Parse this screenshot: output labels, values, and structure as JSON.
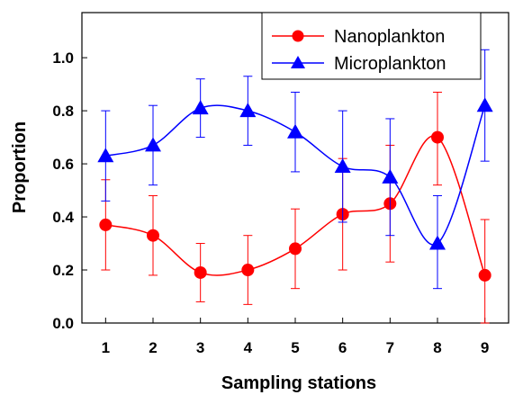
{
  "chart_data": {
    "type": "line",
    "title": "",
    "xlabel": "Sampling stations",
    "ylabel": "Proportion",
    "x": [
      1,
      2,
      3,
      4,
      5,
      6,
      7,
      8,
      9
    ],
    "x_ticks": [
      "1",
      "2",
      "3",
      "4",
      "5",
      "6",
      "7",
      "8",
      "9"
    ],
    "xlim": [
      0.5,
      9.5
    ],
    "ylim": [
      0,
      1.17
    ],
    "y_ticks": [
      "0.0",
      "0.2",
      "0.4",
      "0.6",
      "0.8",
      "1.0"
    ],
    "y_tick_values": [
      0,
      0.2,
      0.4,
      0.6,
      0.8,
      1.0
    ],
    "grid": false,
    "legend_position": "top-right",
    "series": [
      {
        "name": "Nanoplankton",
        "color": "#ff0000",
        "marker": "circle",
        "values": [
          0.37,
          0.33,
          0.19,
          0.2,
          0.28,
          0.41,
          0.45,
          0.7,
          0.18
        ],
        "err_upper": [
          0.54,
          0.48,
          0.3,
          0.33,
          0.43,
          0.62,
          0.67,
          0.87,
          0.39
        ],
        "err_lower": [
          0.2,
          0.18,
          0.08,
          0.07,
          0.13,
          0.2,
          0.23,
          0.52,
          0.0
        ]
      },
      {
        "name": "Microplankton",
        "color": "#0000ff",
        "marker": "triangle",
        "values": [
          0.63,
          0.67,
          0.81,
          0.8,
          0.72,
          0.59,
          0.55,
          0.3,
          0.82
        ],
        "err_upper": [
          0.8,
          0.82,
          0.92,
          0.93,
          0.87,
          0.8,
          0.77,
          0.48,
          1.03
        ],
        "err_lower": [
          0.46,
          0.52,
          0.7,
          0.67,
          0.57,
          0.38,
          0.33,
          0.13,
          0.61
        ]
      }
    ]
  }
}
